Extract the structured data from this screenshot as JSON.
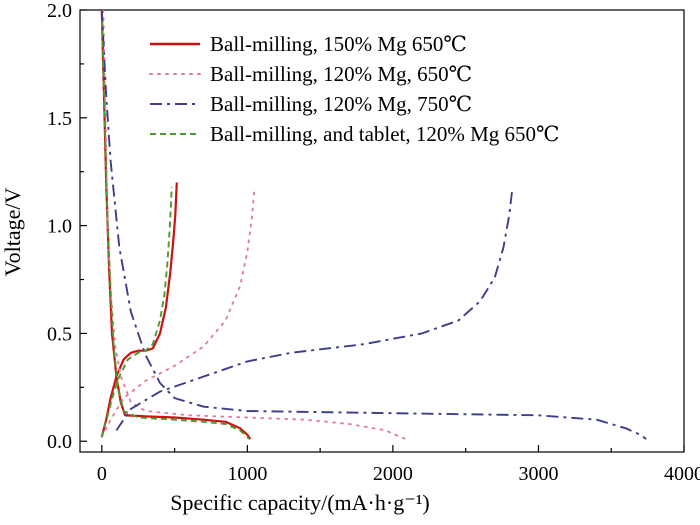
{
  "chart_data": {
    "type": "line",
    "title": "",
    "xlabel": "Specific capacity/(mA·h·g⁻¹)",
    "ylabel": "Voltage/V",
    "xlim": [
      -150,
      4000
    ],
    "ylim": [
      -0.05,
      2.0
    ],
    "xticks": [
      0,
      1000,
      2000,
      3000,
      4000
    ],
    "xtick_labels": [
      "0",
      "1000",
      "2000",
      "3000",
      "4000"
    ],
    "yticks": [
      0.0,
      0.5,
      1.0,
      1.5,
      2.0
    ],
    "ytick_labels": [
      "0.0",
      "0.5",
      "1.0",
      "1.5",
      "2.0"
    ],
    "grid": false,
    "legend_position": "top-center",
    "series": [
      {
        "name": "Ball-milling, 150% Mg 650℃",
        "color": "#cc1111",
        "dash": "solid",
        "discharge": [
          [
            0,
            2.0
          ],
          [
            15,
            1.6
          ],
          [
            30,
            1.2
          ],
          [
            50,
            0.8
          ],
          [
            70,
            0.5
          ],
          [
            100,
            0.3
          ],
          [
            130,
            0.18
          ],
          [
            160,
            0.12
          ],
          [
            300,
            0.115
          ],
          [
            500,
            0.11
          ],
          [
            700,
            0.1
          ],
          [
            850,
            0.09
          ],
          [
            950,
            0.06
          ],
          [
            1000,
            0.03
          ],
          [
            1020,
            0.01
          ]
        ],
        "charge": [
          [
            0,
            0.02
          ],
          [
            30,
            0.1
          ],
          [
            60,
            0.2
          ],
          [
            100,
            0.3
          ],
          [
            150,
            0.38
          ],
          [
            200,
            0.41
          ],
          [
            250,
            0.42
          ],
          [
            300,
            0.42
          ],
          [
            350,
            0.43
          ],
          [
            400,
            0.5
          ],
          [
            440,
            0.62
          ],
          [
            470,
            0.78
          ],
          [
            490,
            0.92
          ],
          [
            505,
            1.05
          ],
          [
            515,
            1.2
          ]
        ]
      },
      {
        "name": "Ball-milling, 120% Mg, 650℃",
        "color": "#e07fa0",
        "dash": "dotted",
        "discharge": [
          [
            10,
            2.0
          ],
          [
            25,
            1.5
          ],
          [
            40,
            1.0
          ],
          [
            60,
            0.7
          ],
          [
            90,
            0.45
          ],
          [
            130,
            0.3
          ],
          [
            200,
            0.18
          ],
          [
            300,
            0.14
          ],
          [
            600,
            0.12
          ],
          [
            1000,
            0.11
          ],
          [
            1400,
            0.1
          ],
          [
            1700,
            0.08
          ],
          [
            1950,
            0.05
          ],
          [
            2050,
            0.02
          ],
          [
            2090,
            0.01
          ]
        ],
        "charge": [
          [
            0,
            0.02
          ],
          [
            60,
            0.1
          ],
          [
            150,
            0.2
          ],
          [
            300,
            0.28
          ],
          [
            500,
            0.35
          ],
          [
            700,
            0.44
          ],
          [
            850,
            0.56
          ],
          [
            950,
            0.72
          ],
          [
            1000,
            0.88
          ],
          [
            1030,
            1.03
          ],
          [
            1050,
            1.18
          ]
        ]
      },
      {
        "name": "Ball-milling, 120% Mg, 750℃",
        "color": "#3d3d8f",
        "dash": "dashdot",
        "discharge": [
          [
            0,
            2.0
          ],
          [
            30,
            1.6
          ],
          [
            60,
            1.3
          ],
          [
            120,
            0.9
          ],
          [
            200,
            0.6
          ],
          [
            300,
            0.4
          ],
          [
            400,
            0.27
          ],
          [
            500,
            0.2
          ],
          [
            700,
            0.16
          ],
          [
            1000,
            0.14
          ],
          [
            2000,
            0.13
          ],
          [
            3000,
            0.12
          ],
          [
            3400,
            0.1
          ],
          [
            3600,
            0.06
          ],
          [
            3700,
            0.03
          ],
          [
            3740,
            0.01
          ]
        ],
        "charge": [
          [
            100,
            0.05
          ],
          [
            200,
            0.15
          ],
          [
            400,
            0.23
          ],
          [
            700,
            0.3
          ],
          [
            1000,
            0.37
          ],
          [
            1300,
            0.41
          ],
          [
            1800,
            0.45
          ],
          [
            2200,
            0.5
          ],
          [
            2450,
            0.56
          ],
          [
            2600,
            0.65
          ],
          [
            2700,
            0.76
          ],
          [
            2760,
            0.9
          ],
          [
            2800,
            1.05
          ],
          [
            2820,
            1.17
          ]
        ]
      },
      {
        "name": "Ball-milling, and tablet, 120% Mg 650℃",
        "color": "#4a9a2c",
        "dash": "dashed",
        "discharge": [
          [
            0,
            1.95
          ],
          [
            20,
            1.5
          ],
          [
            40,
            1.0
          ],
          [
            60,
            0.7
          ],
          [
            80,
            0.45
          ],
          [
            110,
            0.25
          ],
          [
            150,
            0.14
          ],
          [
            250,
            0.11
          ],
          [
            500,
            0.1
          ],
          [
            700,
            0.09
          ],
          [
            850,
            0.08
          ],
          [
            950,
            0.05
          ],
          [
            1000,
            0.02
          ],
          [
            1010,
            0.01
          ]
        ],
        "charge": [
          [
            0,
            0.02
          ],
          [
            40,
            0.12
          ],
          [
            80,
            0.22
          ],
          [
            120,
            0.3
          ],
          [
            180,
            0.38
          ],
          [
            250,
            0.41
          ],
          [
            300,
            0.42
          ],
          [
            350,
            0.45
          ],
          [
            400,
            0.56
          ],
          [
            430,
            0.68
          ],
          [
            450,
            0.82
          ],
          [
            465,
            0.97
          ],
          [
            475,
            1.1
          ],
          [
            480,
            1.18
          ]
        ]
      }
    ]
  }
}
